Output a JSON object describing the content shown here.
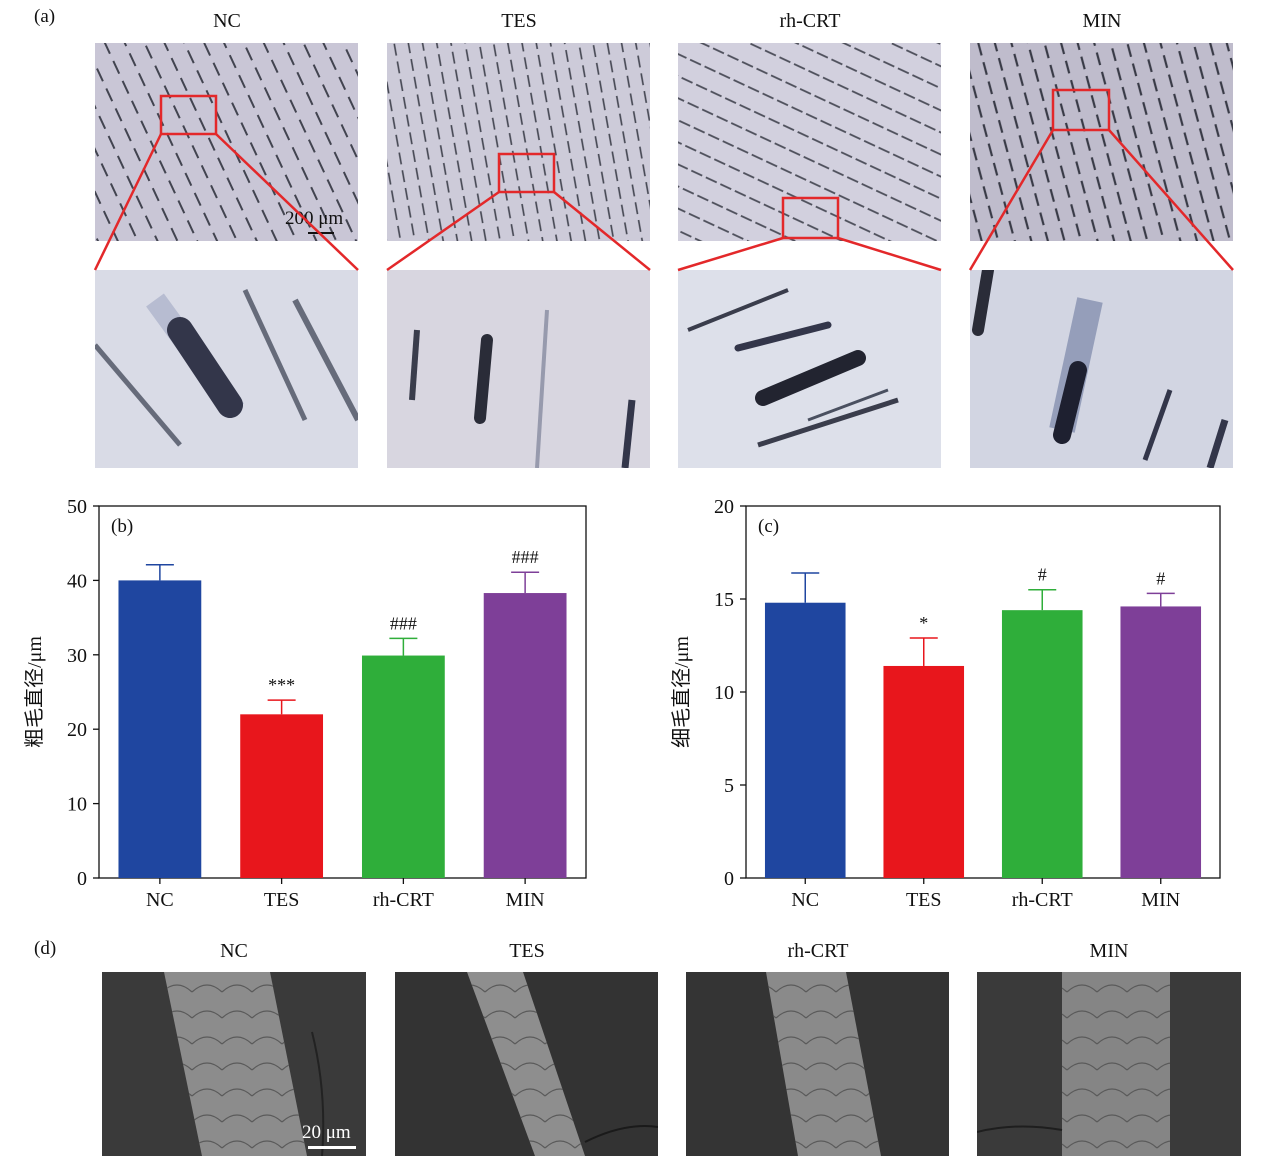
{
  "panels": {
    "a": "(a)",
    "b": "(b)",
    "c": "(c)",
    "d": "(d)"
  },
  "groups": [
    "NC",
    "TES",
    "rh-CRT",
    "MIN"
  ],
  "scale_bars": {
    "a": "200 μm",
    "d": "20 μm"
  },
  "colors": {
    "NC": "#1f46a0",
    "TES": "#e8161c",
    "rh-CRT": "#2fae3a",
    "MIN": "#7e3f98",
    "zoom_box": "#e3282a"
  },
  "chart_data": [
    {
      "type": "bar",
      "panel": "(b)",
      "categories": [
        "NC",
        "TES",
        "rh-CRT",
        "MIN"
      ],
      "values": [
        40.0,
        22.0,
        29.9,
        38.3
      ],
      "error": [
        2.1,
        1.9,
        2.3,
        2.8
      ],
      "annotations": [
        "",
        "***",
        "###",
        "###"
      ],
      "ylabel": "粗毛直径/μm",
      "ylim": [
        0,
        50
      ],
      "yticks": [
        0,
        10,
        20,
        30,
        40,
        50
      ]
    },
    {
      "type": "bar",
      "panel": "(c)",
      "categories": [
        "NC",
        "TES",
        "rh-CRT",
        "MIN"
      ],
      "values": [
        14.8,
        11.4,
        14.4,
        14.6
      ],
      "error": [
        1.6,
        1.5,
        1.1,
        0.7
      ],
      "annotations": [
        "",
        "*",
        "#",
        "#"
      ],
      "ylabel": "细毛直径/μm",
      "ylim": [
        0,
        20
      ],
      "yticks": [
        0,
        5,
        10,
        15,
        20
      ]
    }
  ]
}
